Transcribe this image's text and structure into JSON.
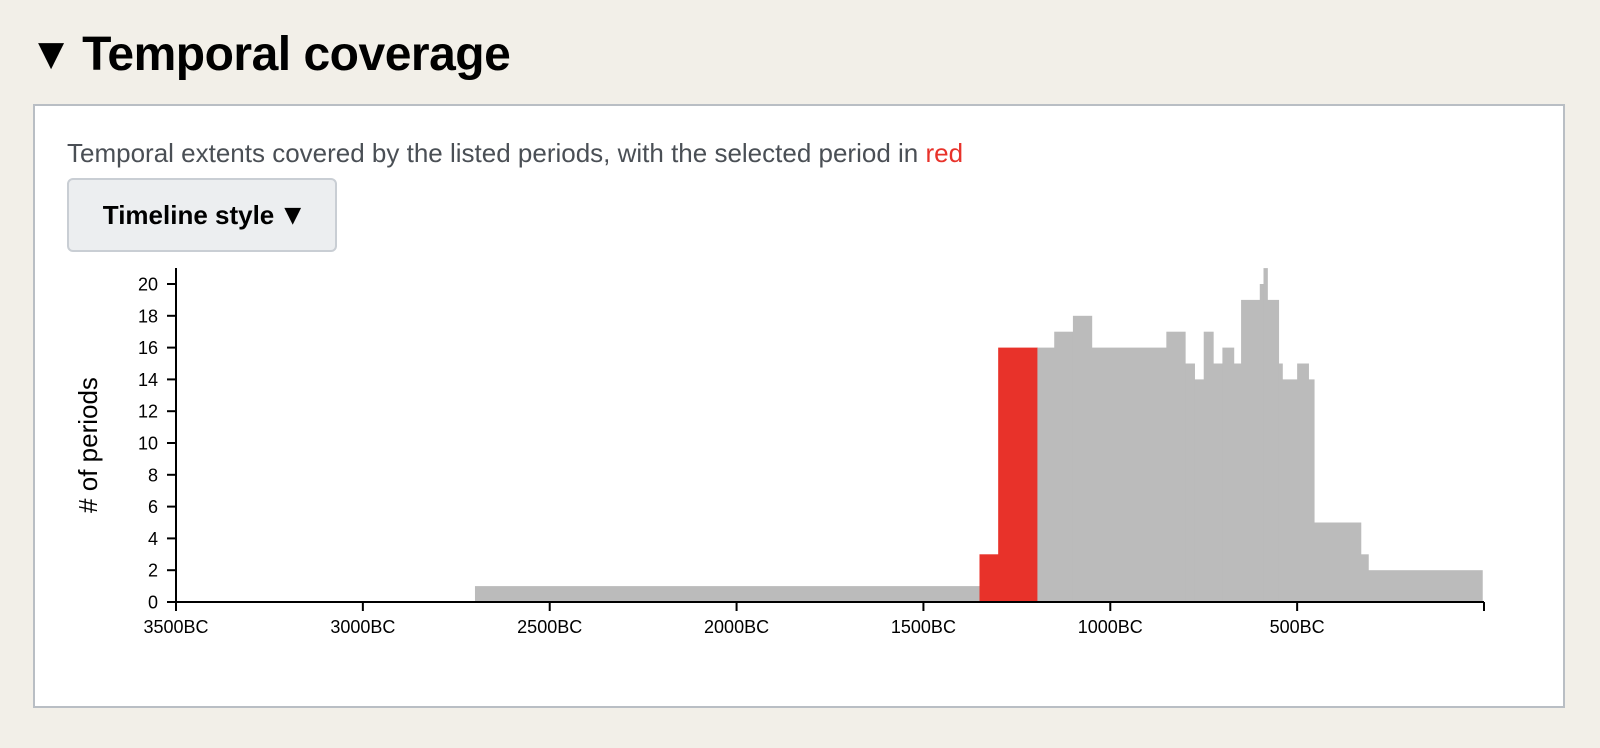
{
  "header": {
    "toggle_icon": "▼",
    "title": "Temporal coverage"
  },
  "panel": {
    "description_prefix": "Temporal extents covered by the listed periods, with the selected period in ",
    "description_highlight": "red",
    "button_label": "Timeline style",
    "button_caret": "▼"
  },
  "colors": {
    "background": "#f2efe8",
    "bar_default": "#bbbbbb",
    "bar_selected": "#e8322a",
    "highlight_text": "#e8322a"
  },
  "chart_data": {
    "type": "area",
    "subtype": "step-histogram",
    "ylabel": "# of periods",
    "xlabel": "",
    "xlim": [
      -3500,
      0
    ],
    "ylim": [
      0,
      21
    ],
    "x_ticks": [
      {
        "value": -3500,
        "label": "3500BC"
      },
      {
        "value": -3000,
        "label": "3000BC"
      },
      {
        "value": -2500,
        "label": "2500BC"
      },
      {
        "value": -2000,
        "label": "2000BC"
      },
      {
        "value": -1500,
        "label": "1500BC"
      },
      {
        "value": -1000,
        "label": "1000BC"
      },
      {
        "value": -500,
        "label": "500BC"
      }
    ],
    "y_ticks": [
      0,
      2,
      4,
      6,
      8,
      10,
      12,
      14,
      16,
      18,
      20
    ],
    "steps": [
      {
        "start": -2700,
        "end": -1350,
        "value": 1,
        "selected": false
      },
      {
        "start": -1350,
        "end": -1300,
        "value": 3,
        "selected": true
      },
      {
        "start": -1300,
        "end": -1195,
        "value": 16,
        "selected": true
      },
      {
        "start": -1195,
        "end": -1150,
        "value": 16,
        "selected": false
      },
      {
        "start": -1150,
        "end": -1100,
        "value": 17,
        "selected": false
      },
      {
        "start": -1100,
        "end": -1050,
        "value": 18,
        "selected": false
      },
      {
        "start": -1050,
        "end": -850,
        "value": 16,
        "selected": false
      },
      {
        "start": -850,
        "end": -800,
        "value": 17,
        "selected": false
      },
      {
        "start": -800,
        "end": -775,
        "value": 15,
        "selected": false
      },
      {
        "start": -775,
        "end": -750,
        "value": 14,
        "selected": false
      },
      {
        "start": -750,
        "end": -725,
        "value": 17,
        "selected": false
      },
      {
        "start": -725,
        "end": -700,
        "value": 15,
        "selected": false
      },
      {
        "start": -700,
        "end": -670,
        "value": 16,
        "selected": false
      },
      {
        "start": -670,
        "end": -650,
        "value": 15,
        "selected": false
      },
      {
        "start": -650,
        "end": -600,
        "value": 19,
        "selected": false
      },
      {
        "start": -600,
        "end": -590,
        "value": 20,
        "selected": false
      },
      {
        "start": -590,
        "end": -580,
        "value": 21,
        "selected": false
      },
      {
        "start": -580,
        "end": -550,
        "value": 19,
        "selected": false
      },
      {
        "start": -550,
        "end": -540,
        "value": 15,
        "selected": false
      },
      {
        "start": -540,
        "end": -500,
        "value": 14,
        "selected": false
      },
      {
        "start": -500,
        "end": -470,
        "value": 15,
        "selected": false
      },
      {
        "start": -470,
        "end": -455,
        "value": 14,
        "selected": false
      },
      {
        "start": -455,
        "end": -330,
        "value": 5,
        "selected": false
      },
      {
        "start": -330,
        "end": -310,
        "value": 3,
        "selected": false
      },
      {
        "start": -310,
        "end": -5,
        "value": 2,
        "selected": false
      }
    ]
  }
}
